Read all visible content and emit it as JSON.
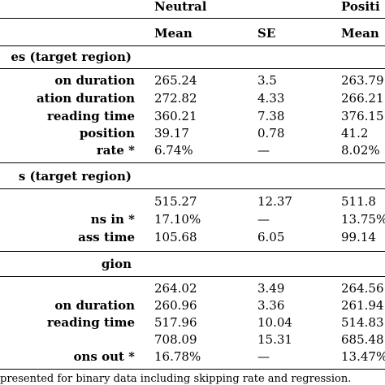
{
  "header": {
    "neutral": "Neutral",
    "positive": "Positi",
    "mean": "Mean",
    "se": "SE",
    "mean2": "Mean"
  },
  "sections": [
    {
      "title": "es (target region)",
      "rows": [
        {
          "label": "on duration",
          "c1": "265.24",
          "c2": "3.5",
          "c3": "263.79"
        },
        {
          "label": "ation duration",
          "c1": "272.82",
          "c2": "4.33",
          "c3": "266.21"
        },
        {
          "label": "reading time",
          "c1": "360.21",
          "c2": "7.38",
          "c3": "376.15"
        },
        {
          "label": "position",
          "c1": "39.17",
          "c2": "0.78",
          "c3": "41.2"
        },
        {
          "label": "rate *",
          "c1": "6.74%",
          "c2": "—",
          "c3": "8.02%"
        }
      ]
    },
    {
      "title": "s (target region)",
      "rows": [
        {
          "label": "",
          "c1": "515.27",
          "c2": "12.37",
          "c3": "511.8"
        },
        {
          "label": "ns in *",
          "c1": "17.10%",
          "c2": "—",
          "c3": "13.75%"
        },
        {
          "label": "ass time",
          "c1": "105.68",
          "c2": "6.05",
          "c3": "99.14"
        }
      ]
    },
    {
      "title": "gion",
      "rows": [
        {
          "label": "",
          "c1": "264.02",
          "c2": "3.49",
          "c3": "264.56"
        },
        {
          "label": "on duration",
          "c1": "260.96",
          "c2": "3.36",
          "c3": "261.94"
        },
        {
          "label": "reading time",
          "c1": "517.96",
          "c2": "10.04",
          "c3": "514.83"
        },
        {
          "label": "",
          "c1": "708.09",
          "c2": "15.31",
          "c3": "685.48"
        },
        {
          "label": "ons out *",
          "c1": "16.78%",
          "c2": "—",
          "c3": "13.47%"
        }
      ]
    }
  ],
  "footnote": "presented for binary data including skipping rate and regression."
}
